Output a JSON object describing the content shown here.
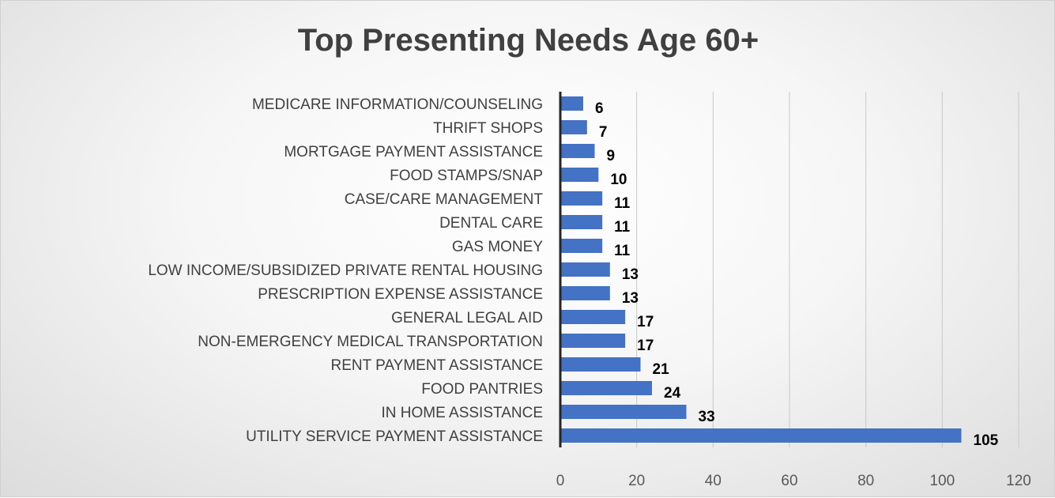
{
  "chart_data": {
    "type": "bar",
    "orientation": "horizontal",
    "title": "Top Presenting Needs Age 60+",
    "categories": [
      "MEDICARE INFORMATION/COUNSELING",
      "THRIFT SHOPS",
      "MORTGAGE PAYMENT ASSISTANCE",
      "FOOD STAMPS/SNAP",
      "CASE/CARE MANAGEMENT",
      "DENTAL CARE",
      "GAS MONEY",
      "LOW INCOME/SUBSIDIZED PRIVATE RENTAL HOUSING",
      "PRESCRIPTION EXPENSE ASSISTANCE",
      "GENERAL LEGAL AID",
      "NON-EMERGENCY MEDICAL TRANSPORTATION",
      "RENT PAYMENT ASSISTANCE",
      "FOOD PANTRIES",
      "IN HOME ASSISTANCE",
      "UTILITY SERVICE PAYMENT ASSISTANCE"
    ],
    "values": [
      6,
      7,
      9,
      10,
      11,
      11,
      11,
      13,
      13,
      17,
      17,
      21,
      24,
      33,
      105
    ],
    "xlim": [
      0,
      120
    ],
    "xticks": [
      0,
      20,
      40,
      60,
      80,
      100,
      120
    ],
    "grid": true,
    "data_labels": true,
    "bar_color": "#4472C4"
  }
}
